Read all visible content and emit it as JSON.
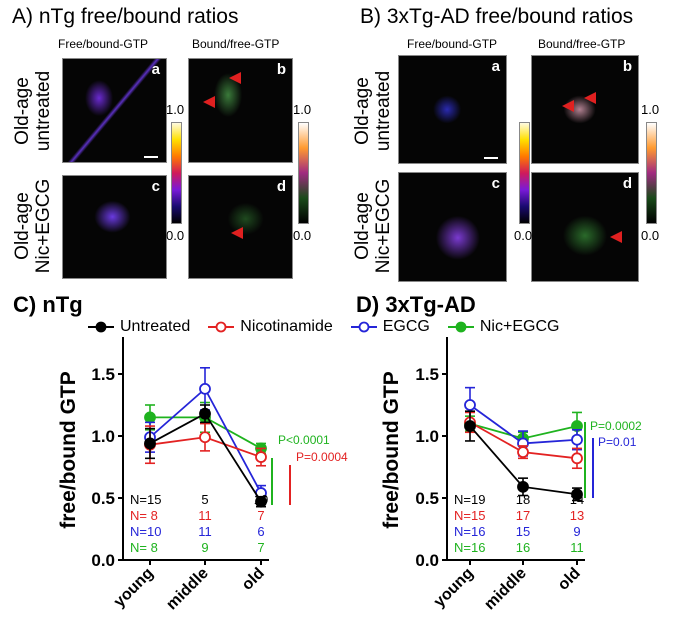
{
  "panel_a": {
    "title": "A) nTg free/bound ratios",
    "col1": "Free/bound-GTP",
    "col2": "Bound/free-GTP",
    "row1": [
      "Old-age",
      "untreated"
    ],
    "row2": [
      "Old-age",
      "Nic+EGCG"
    ],
    "letters": [
      "a",
      "b",
      "c",
      "d"
    ],
    "cbar_max": "1.0",
    "cbar_min": "0.0"
  },
  "panel_b": {
    "title": "B) 3xTg-AD free/bound ratios",
    "col1": "Free/bound-GTP",
    "col2": "Bound/free-GTP",
    "row1": [
      "Old-age",
      "untreated"
    ],
    "row2": [
      "Old-age",
      "Nic+EGCG"
    ],
    "letters": [
      "a",
      "b",
      "c",
      "d"
    ],
    "cbar_max": "1.0",
    "cbar_min": "0.0"
  },
  "legend": [
    {
      "name": "Untreated",
      "color": "#000000",
      "marker": "filled"
    },
    {
      "name": "Nicotinamide",
      "color": "#e32222",
      "marker": "open"
    },
    {
      "name": "EGCG",
      "color": "#2525d8",
      "marker": "open"
    },
    {
      "name": "Nic+EGCG",
      "color": "#1fb31f",
      "marker": "filled"
    }
  ],
  "chart_data": [
    {
      "type": "line",
      "title": "C) nTg",
      "ylabel": "free/bound GTP",
      "categories": [
        "young",
        "middle",
        "old"
      ],
      "ylim": [
        0,
        1.75
      ],
      "yticks": [
        "0.0",
        "0.5",
        "1.0",
        "1.5"
      ],
      "series": [
        {
          "name": "Untreated",
          "values": [
            0.94,
            1.18,
            0.47
          ],
          "errors": [
            0.12,
            0.07,
            0.04
          ],
          "n": [
            "N=15",
            "5",
            "10"
          ]
        },
        {
          "name": "Nicotinamide",
          "values": [
            0.93,
            0.99,
            0.83
          ],
          "errors": [
            0.15,
            0.11,
            0.07
          ],
          "n": [
            "N= 8",
            "11",
            "7"
          ]
        },
        {
          "name": "EGCG",
          "values": [
            0.99,
            1.38,
            0.54
          ],
          "errors": [
            0.12,
            0.17,
            0.06
          ],
          "n": [
            "N=10",
            "11",
            "6"
          ]
        },
        {
          "name": "Nic+EGCG",
          "values": [
            1.15,
            1.15,
            0.9
          ],
          "errors": [
            0.1,
            0.12,
            0.04
          ],
          "n": [
            "N= 8",
            "9",
            "7"
          ]
        }
      ],
      "annotations": [
        {
          "text": "P<0.0001",
          "color": "#1fb31f"
        },
        {
          "text": "P=0.0004",
          "color": "#e32222"
        }
      ]
    },
    {
      "type": "line",
      "title": "D) 3xTg-AD",
      "ylabel": "free/bound GTP",
      "categories": [
        "young",
        "middle",
        "old"
      ],
      "ylim": [
        0,
        1.75
      ],
      "yticks": [
        "0.0",
        "0.5",
        "1.0",
        "1.5"
      ],
      "series": [
        {
          "name": "Untreated",
          "values": [
            1.08,
            0.59,
            0.53
          ],
          "errors": [
            0.12,
            0.07,
            0.05
          ],
          "n": [
            "N=19",
            "18",
            "14"
          ]
        },
        {
          "name": "Nicotinamide",
          "values": [
            1.11,
            0.87,
            0.82
          ],
          "errors": [
            0.08,
            0.05,
            0.08
          ],
          "n": [
            "N=15",
            "17",
            "13"
          ]
        },
        {
          "name": "EGCG",
          "values": [
            1.25,
            0.94,
            0.97
          ],
          "errors": [
            0.14,
            0.1,
            0.08
          ],
          "n": [
            "N=16",
            "15",
            "9"
          ]
        },
        {
          "name": "Nic+EGCG",
          "values": [
            1.1,
            0.98,
            1.08
          ],
          "errors": [
            0.06,
            0.05,
            0.11
          ],
          "n": [
            "N=16",
            "16",
            "11"
          ]
        }
      ],
      "annotations": [
        {
          "text": "P=0.0002",
          "color": "#1fb31f"
        },
        {
          "text": "P=0.01",
          "color": "#2525d8"
        }
      ]
    }
  ]
}
